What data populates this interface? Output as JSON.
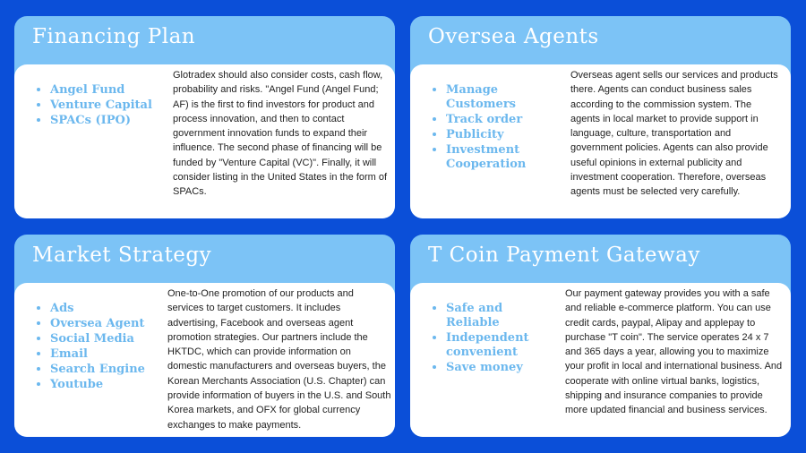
{
  "cards": [
    {
      "title": "Financing Plan",
      "bullets": [
        "Angel Fund",
        "Venture Capital",
        "SPACs (IPO)"
      ],
      "text": "Glotradex should also consider costs, cash flow, probability and risks. \"Angel Fund (Angel Fund; AF) is the first to find investors for product and process innovation, and then to contact government innovation funds to expand their influence. The second phase of financing will be funded by \"Venture Capital (VC)\". Finally, it will consider listing in the United States in the form of SPACs."
    },
    {
      "title": "Oversea Agents",
      "bullets": [
        "Manage Customers",
        "Track order",
        "Publicity",
        "Investment Cooperation"
      ],
      "text": "Overseas agent sells our services and products there. Agents can conduct business sales according to the commission system. The agents in local market to provide support in language, culture, transportation and government policies. Agents can also provide useful opinions in external publicity and investment cooperation. Therefore, overseas agents must be selected very carefully."
    },
    {
      "title": "Market Strategy",
      "bullets": [
        "Ads",
        "Oversea Agent",
        "Social Media",
        "Email",
        "Search Engine",
        "Youtube"
      ],
      "text": "One-to-One promotion of our products and services to target customers. It includes advertising, Facebook and overseas agent promotion strategies. Our partners include the HKTDC, which can provide information on domestic manufacturers and overseas buyers, the Korean Merchants Association (U.S. Chapter) can provide information of buyers in the U.S. and South Korea markets, and OFX  for global currency exchanges to make payments."
    },
    {
      "title": "T Coin Payment Gateway",
      "bullets": [
        "Safe and Reliable",
        "Independent convenient",
        "Save money"
      ],
      "text": "Our payment gateway provides you with a safe and reliable e-commerce platform. You can use credit cards, paypal, Alipay and applepay to purchase \"T coin\". The service operates 24 x 7 and 365 days a year, allowing you to maximize your profit in local and international business. And cooperate with online virtual banks, logistics, shipping and insurance companies to provide more updated financial and business services."
    }
  ]
}
